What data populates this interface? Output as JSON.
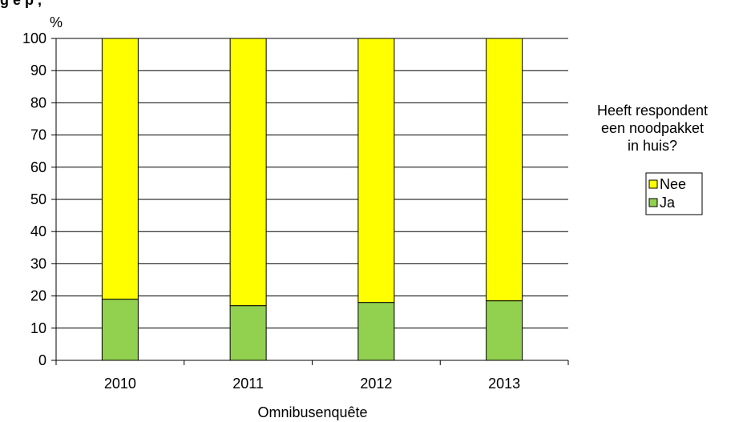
{
  "chart_data": {
    "type": "bar",
    "stacked": true,
    "title": "g         e             p                  ,",
    "ylabel": "%",
    "xlabel": "Omnibusenquête",
    "ylim": [
      0,
      100
    ],
    "yticks": [
      0,
      10,
      20,
      30,
      40,
      50,
      60,
      70,
      80,
      90,
      100
    ],
    "categories": [
      "2010",
      "2011",
      "2012",
      "2013"
    ],
    "series": [
      {
        "name": "Ja",
        "color": "#92d050",
        "values": [
          19,
          17,
          18,
          18.5
        ]
      },
      {
        "name": "Nee",
        "color": "#ffff00",
        "values": [
          81,
          83,
          82,
          81.5
        ]
      }
    ],
    "gridlines": true,
    "legend": {
      "title_lines": [
        "Heeft respondent",
        "een noodpakket",
        "in huis?"
      ],
      "placement": "right",
      "order": [
        "Nee",
        "Ja"
      ]
    }
  }
}
